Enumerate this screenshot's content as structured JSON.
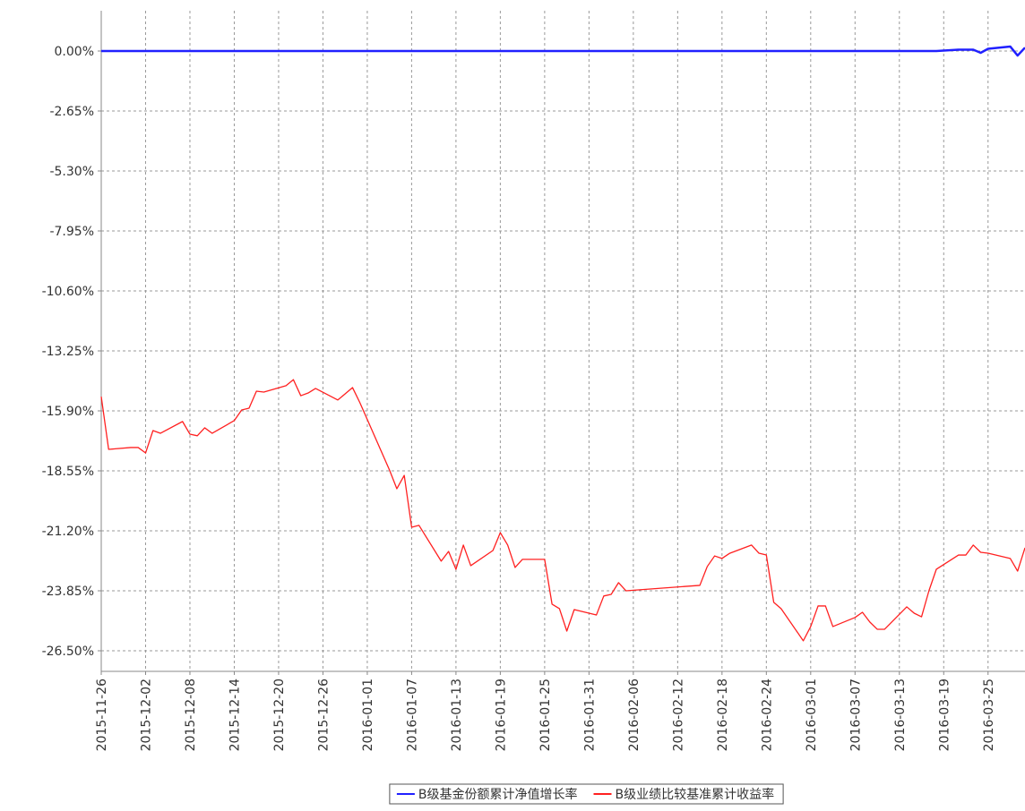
{
  "chart_data": {
    "type": "line",
    "x": [
      "2015-11-26",
      "2015-11-27",
      "2015-11-30",
      "2015-12-01",
      "2015-12-02",
      "2015-12-03",
      "2015-12-04",
      "2015-12-07",
      "2015-12-08",
      "2015-12-09",
      "2015-12-10",
      "2015-12-11",
      "2015-12-14",
      "2015-12-15",
      "2015-12-16",
      "2015-12-17",
      "2015-12-18",
      "2015-12-21",
      "2015-12-22",
      "2015-12-23",
      "2015-12-24",
      "2015-12-25",
      "2015-12-28",
      "2015-12-29",
      "2015-12-30",
      "2015-12-31",
      "2016-01-04",
      "2016-01-05",
      "2016-01-06",
      "2016-01-07",
      "2016-01-08",
      "2016-01-11",
      "2016-01-12",
      "2016-01-13",
      "2016-01-14",
      "2016-01-15",
      "2016-01-18",
      "2016-01-19",
      "2016-01-20",
      "2016-01-21",
      "2016-01-22",
      "2016-01-25",
      "2016-01-26",
      "2016-01-27",
      "2016-01-28",
      "2016-01-29",
      "2016-02-01",
      "2016-02-02",
      "2016-02-03",
      "2016-02-04",
      "2016-02-05",
      "2016-02-15",
      "2016-02-16",
      "2016-02-17",
      "2016-02-18",
      "2016-02-19",
      "2016-02-22",
      "2016-02-23",
      "2016-02-24",
      "2016-02-25",
      "2016-02-26",
      "2016-02-29",
      "2016-03-01",
      "2016-03-02",
      "2016-03-03",
      "2016-03-04",
      "2016-03-07",
      "2016-03-08",
      "2016-03-09",
      "2016-03-10",
      "2016-03-11",
      "2016-03-14",
      "2016-03-15",
      "2016-03-16",
      "2016-03-17",
      "2016-03-18",
      "2016-03-21",
      "2016-03-22",
      "2016-03-23",
      "2016-03-24",
      "2016-03-25",
      "2016-03-28",
      "2016-03-29",
      "2016-03-30"
    ],
    "series": [
      {
        "name": "B级基金份额累计净值增长率",
        "color": "#2020ff",
        "values": [
          0,
          0,
          0,
          0,
          0,
          0,
          0,
          0,
          0,
          0,
          0,
          0,
          0,
          0,
          0,
          0,
          0,
          0,
          0,
          0,
          0,
          0,
          0,
          0,
          0,
          0,
          0,
          0,
          0,
          0,
          0,
          0,
          0,
          0,
          0,
          0,
          0,
          0,
          0,
          0,
          0,
          0,
          0,
          0,
          0,
          0,
          0,
          0,
          0,
          0,
          0,
          0,
          0,
          0,
          0,
          0,
          0,
          0,
          0,
          0,
          0,
          0,
          0,
          0,
          0,
          0,
          0,
          0,
          0,
          0,
          0,
          0,
          0,
          0,
          0,
          0,
          0.06,
          0.06,
          0.06,
          -0.08,
          0.1,
          0.2,
          -0.2,
          0.15
        ]
      },
      {
        "name": "B级业绩比较基准累计收益率",
        "color": "#ff2020",
        "values": [
          -15.27,
          -17.6,
          -17.52,
          -17.52,
          -17.76,
          -16.77,
          -16.89,
          -16.37,
          -16.93,
          -17.0,
          -16.65,
          -16.89,
          -16.33,
          -15.86,
          -15.78,
          -15.03,
          -15.07,
          -14.79,
          -14.52,
          -15.23,
          -15.11,
          -14.91,
          -15.42,
          -15.15,
          -14.87,
          -15.54,
          -18.51,
          -19.34,
          -18.75,
          -21.04,
          -20.96,
          -22.54,
          -22.11,
          -22.9,
          -21.83,
          -22.74,
          -22.07,
          -21.28,
          -21.83,
          -22.82,
          -22.46,
          -22.46,
          -24.44,
          -24.64,
          -25.63,
          -24.68,
          -24.92,
          -24.08,
          -24.01,
          -23.49,
          -23.85,
          -23.61,
          -22.78,
          -22.31,
          -22.42,
          -22.2,
          -21.83,
          -22.19,
          -22.27,
          -24.36,
          -24.64,
          -26.06,
          -25.43,
          -24.52,
          -24.52,
          -25.43,
          -25.03,
          -24.8,
          -25.23,
          -25.55,
          -25.55,
          -24.56,
          -24.84,
          -25.0,
          -23.85,
          -22.9,
          -22.27,
          -22.27,
          -21.83,
          -22.15,
          -22.19,
          -22.42,
          -22.98,
          -21.95
        ]
      }
    ],
    "xlim": [
      "2015-11-26",
      "2016-03-30"
    ],
    "xticks": [
      "2015-11-26",
      "2015-12-02",
      "2015-12-08",
      "2015-12-14",
      "2015-12-20",
      "2015-12-26",
      "2016-01-01",
      "2016-01-07",
      "2016-01-13",
      "2016-01-19",
      "2016-01-25",
      "2016-01-31",
      "2016-02-06",
      "2016-02-12",
      "2016-02-18",
      "2016-02-24",
      "2016-03-01",
      "2016-03-07",
      "2016-03-13",
      "2016-03-19",
      "2016-03-25"
    ],
    "ylim": [
      -27.41,
      1.78
    ],
    "yticks": [
      {
        "value": 0,
        "label": "0.00%"
      },
      {
        "value": -2.65,
        "label": "-2.65%"
      },
      {
        "value": -5.3,
        "label": "-5.30%"
      },
      {
        "value": -7.95,
        "label": "-7.95%"
      },
      {
        "value": -10.6,
        "label": "-10.60%"
      },
      {
        "value": -13.25,
        "label": "-13.25%"
      },
      {
        "value": -15.9,
        "label": "-15.90%"
      },
      {
        "value": -18.55,
        "label": "-18.55%"
      },
      {
        "value": -21.2,
        "label": "-21.20%"
      },
      {
        "value": -23.85,
        "label": "-23.85%"
      },
      {
        "value": -26.5,
        "label": "-26.50%"
      }
    ],
    "grid": true,
    "legend": "bottom"
  }
}
